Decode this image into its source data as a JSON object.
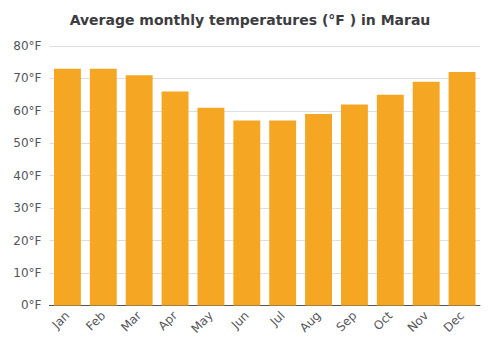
{
  "chart_data": {
    "type": "bar",
    "title": "Average monthly temperatures (°F ) in Marau",
    "categories": [
      "Jan",
      "Feb",
      "Mar",
      "Apr",
      "May",
      "Jun",
      "Jul",
      "Aug",
      "Sep",
      "Oct",
      "Nov",
      "Dec"
    ],
    "values": [
      73,
      73,
      71,
      66,
      61,
      57,
      57,
      59,
      62,
      65,
      69,
      72
    ],
    "color": "#F5A623",
    "ylim": [
      0,
      80
    ],
    "yticks": [
      {
        "value": 0,
        "label": "0°F"
      },
      {
        "value": 10,
        "label": "10°F"
      },
      {
        "value": 20,
        "label": "20°F"
      },
      {
        "value": 30,
        "label": "30°F"
      },
      {
        "value": 40,
        "label": "40°F"
      },
      {
        "value": 50,
        "label": "50°F"
      },
      {
        "value": 60,
        "label": "60°F"
      },
      {
        "value": 70,
        "label": "70°F"
      },
      {
        "value": 80,
        "label": "80°F"
      }
    ],
    "grid": true
  }
}
